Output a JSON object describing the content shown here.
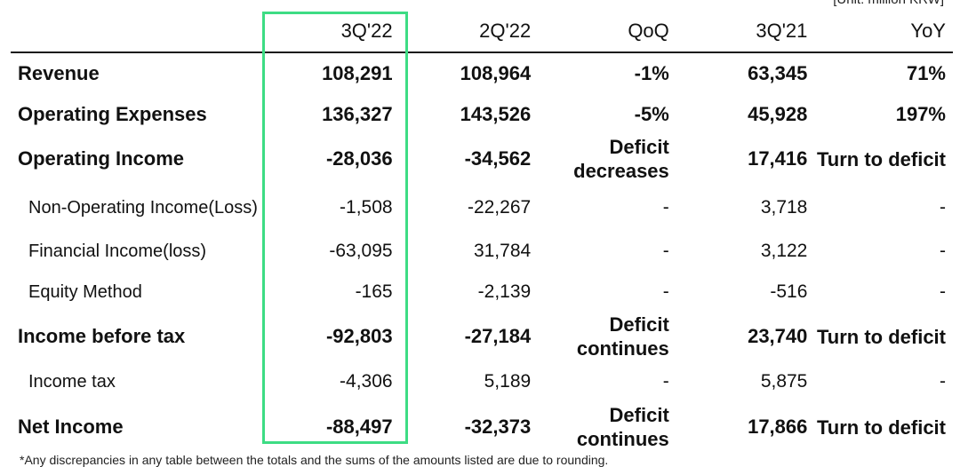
{
  "unit_note": "[Unit: million KRW]",
  "columns": [
    "3Q'22",
    "2Q'22",
    "QoQ",
    "3Q'21",
    "YoY"
  ],
  "rows": [
    {
      "label": "Revenue",
      "values": [
        "108,291",
        "108,964",
        "-1%",
        "63,345",
        "71%"
      ]
    },
    {
      "label": "Operating Expenses",
      "values": [
        "136,327",
        "143,526",
        "-5%",
        "45,928",
        "197%"
      ]
    },
    {
      "label": "Operating Income",
      "values": [
        "-28,036",
        "-34,562",
        "Deficit decreases",
        "17,416",
        "Turn to deficit"
      ]
    },
    {
      "label": "Non-Operating Income(Loss)",
      "values": [
        "-1,508",
        "-22,267",
        "-",
        "3,718",
        "-"
      ]
    },
    {
      "label": "Financial Income(loss)",
      "values": [
        "-63,095",
        "31,784",
        "-",
        "3,122",
        "-"
      ]
    },
    {
      "label": "Equity Method",
      "values": [
        "-165",
        "-2,139",
        "-",
        "-516",
        "-"
      ]
    },
    {
      "label": "Income before tax",
      "values": [
        "-92,803",
        "-27,184",
        "Deficit continues",
        "23,740",
        "Turn to deficit"
      ]
    },
    {
      "label": "Income tax",
      "values": [
        "-4,306",
        "5,189",
        "-",
        "5,875",
        "-"
      ]
    },
    {
      "label": "Net Income",
      "values": [
        "-88,497",
        "-32,373",
        "Deficit continues",
        "17,866",
        "Turn to deficit"
      ]
    }
  ],
  "highlight_color": "#3ddc84",
  "footnote": "*Any discrepancies in any table between the totals and the sums of the amounts listed are due to rounding."
}
